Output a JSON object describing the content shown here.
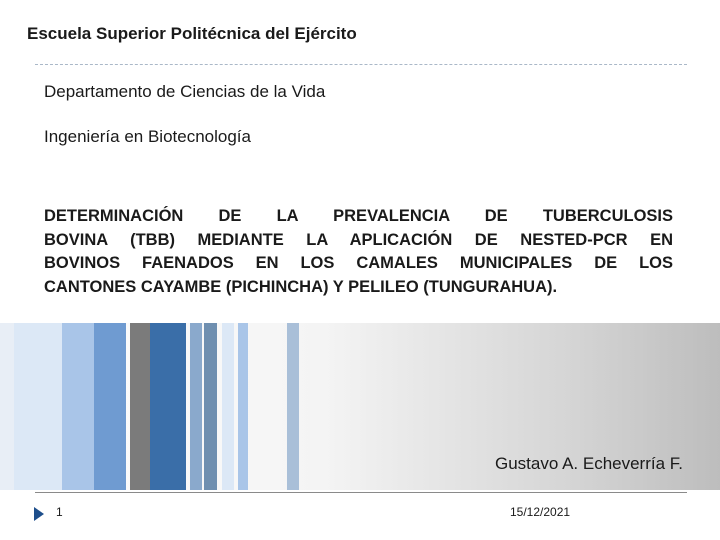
{
  "header": {
    "institution": "Escuela Superior Politécnica del Ejército",
    "department": "Departamento de Ciencias de la Vida",
    "program": "Ingeniería en Biotecnología"
  },
  "title_lines": [
    "DETERMINACIÓN DE LA PREVALENCIA DE TUBERCULOSIS",
    "BOVINA (TBB) MEDIANTE LA APLICACIÓN DE NESTED-PCR EN",
    "BOVINOS FAENADOS EN LOS CAMALES MUNICIPALES DE LOS",
    "CANTONES CAYAMBE (PICHINCHA) Y PELILEO (TUNGURAHUA)."
  ],
  "author": "Gustavo A. Echeverría F.",
  "footer": {
    "page_number": "1",
    "date": "15/12/2021"
  },
  "colors": {
    "accent": "#1e4f8c",
    "stripe_dark_blue": "#3a6ea8",
    "stripe_mid_blue": "#6f9bd1",
    "stripe_light_blue": "#a9c5e8",
    "stripe_gray": "#7b7b7b"
  }
}
